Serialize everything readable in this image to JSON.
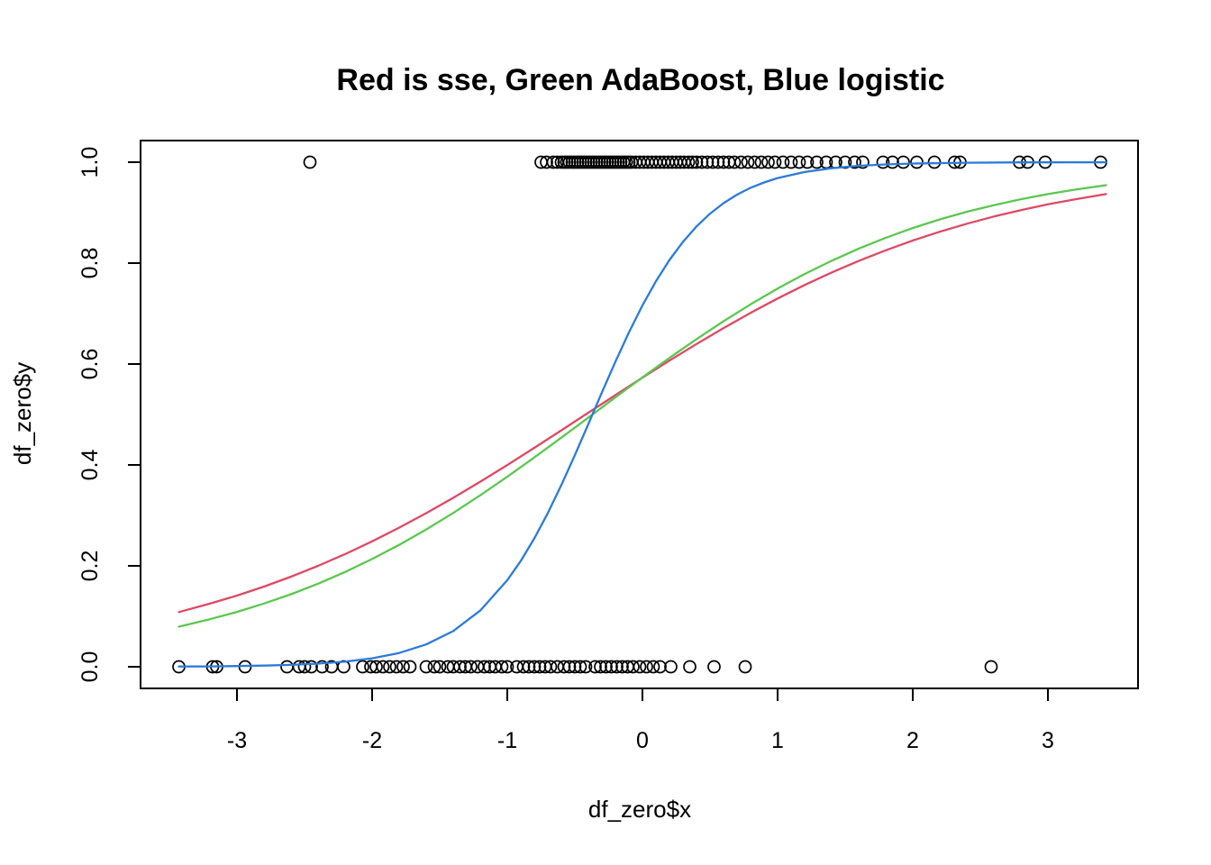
{
  "chart_data": {
    "type": "scatter",
    "title": "Red is sse, Green AdaBoost, Blue logistic",
    "xlabel": "df_zero$x",
    "ylabel": "df_zero$y",
    "xlim": [
      -3.713,
      3.667
    ],
    "ylim": [
      -0.0429,
      1.0429
    ],
    "grid": false,
    "legend": "none (colors named in title)",
    "x_axis": {
      "tick_values": [
        -3,
        -2,
        -1,
        0,
        1,
        2,
        3
      ],
      "tick_labels": [
        "-3",
        "-2",
        "-1",
        "0",
        "1",
        "2",
        "3"
      ]
    },
    "y_axis": {
      "tick_values": [
        0.0,
        0.2,
        0.4,
        0.6,
        0.8,
        1.0
      ],
      "tick_labels": [
        "0.0",
        "0.2",
        "0.4",
        "0.6",
        "0.8",
        "1.0"
      ],
      "label_rotation": -90
    },
    "colors": {
      "background": "#ffffff",
      "foreground": "#000000",
      "sse_red": "#DD4965",
      "adaboost_green": "#5BC74F",
      "logistic_blue": "#2B7BD9"
    },
    "scatter": {
      "marker": "open-circle",
      "color": "#000000",
      "y1_x": [
        -2.46,
        -0.75,
        -0.71,
        -0.66,
        -0.63,
        -0.6,
        -0.58,
        -0.56,
        -0.54,
        -0.52,
        -0.5,
        -0.48,
        -0.46,
        -0.44,
        -0.42,
        -0.4,
        -0.38,
        -0.36,
        -0.34,
        -0.32,
        -0.3,
        -0.28,
        -0.26,
        -0.24,
        -0.22,
        -0.2,
        -0.18,
        -0.16,
        -0.14,
        -0.12,
        -0.1,
        -0.08,
        -0.05,
        -0.02,
        0.01,
        0.04,
        0.07,
        0.1,
        0.13,
        0.16,
        0.19,
        0.22,
        0.25,
        0.28,
        0.31,
        0.34,
        0.37,
        0.4,
        0.44,
        0.48,
        0.52,
        0.56,
        0.6,
        0.64,
        0.68,
        0.73,
        0.78,
        0.83,
        0.88,
        0.93,
        0.98,
        1.04,
        1.1,
        1.16,
        1.22,
        1.29,
        1.36,
        1.43,
        1.5,
        1.57,
        1.63,
        1.78,
        1.85,
        1.93,
        2.03,
        2.16,
        2.31,
        2.35,
        2.79,
        2.85,
        2.98,
        3.39
      ],
      "y0_x": [
        -3.43,
        -3.18,
        -3.15,
        -2.94,
        -2.63,
        -2.54,
        -2.5,
        -2.45,
        -2.37,
        -2.3,
        -2.21,
        -2.07,
        -2.01,
        -1.97,
        -1.92,
        -1.87,
        -1.82,
        -1.77,
        -1.72,
        -1.6,
        -1.54,
        -1.5,
        -1.44,
        -1.4,
        -1.35,
        -1.31,
        -1.27,
        -1.22,
        -1.17,
        -1.13,
        -1.09,
        -1.04,
        -1.0,
        -0.93,
        -0.88,
        -0.84,
        -0.8,
        -0.76,
        -0.72,
        -0.68,
        -0.63,
        -0.58,
        -0.54,
        -0.5,
        -0.46,
        -0.42,
        -0.35,
        -0.31,
        -0.27,
        -0.23,
        -0.19,
        -0.15,
        -0.11,
        -0.07,
        -0.02,
        0.03,
        0.08,
        0.13,
        0.21,
        0.35,
        0.53,
        0.76,
        2.58
      ]
    },
    "series": [
      {
        "name": "sse",
        "color_key": "sse_red",
        "x": [
          -3.43,
          -3.2,
          -3.0,
          -2.8,
          -2.6,
          -2.4,
          -2.2,
          -2.0,
          -1.8,
          -1.6,
          -1.4,
          -1.2,
          -1.0,
          -0.8,
          -0.6,
          -0.4,
          -0.2,
          0,
          0.2,
          0.4,
          0.6,
          0.8,
          1.0,
          1.2,
          1.4,
          1.6,
          1.8,
          2.0,
          2.2,
          2.4,
          2.6,
          2.8,
          3.0,
          3.2,
          3.43
        ],
        "y": [
          0.1084,
          0.1251,
          0.1411,
          0.1589,
          0.1786,
          0.2,
          0.2233,
          0.2486,
          0.2757,
          0.3045,
          0.3349,
          0.3668,
          0.3999,
          0.4339,
          0.4685,
          0.5035,
          0.5384,
          0.573,
          0.6068,
          0.6397,
          0.6713,
          0.7014,
          0.7299,
          0.7566,
          0.7815,
          0.8043,
          0.8254,
          0.8448,
          0.8622,
          0.878,
          0.8923,
          0.905,
          0.9164,
          0.9264,
          0.9367
        ]
      },
      {
        "name": "AdaBoost",
        "color_key": "adaboost_green",
        "x": [
          -3.43,
          -3.2,
          -3.0,
          -2.8,
          -2.6,
          -2.4,
          -2.2,
          -2.0,
          -1.8,
          -1.6,
          -1.4,
          -1.2,
          -1.0,
          -0.8,
          -0.6,
          -0.4,
          -0.2,
          0,
          0.2,
          0.4,
          0.6,
          0.8,
          1.0,
          1.2,
          1.4,
          1.6,
          1.8,
          2.0,
          2.2,
          2.4,
          2.6,
          2.8,
          3.0,
          3.2,
          3.43
        ],
        "y": [
          0.0795,
          0.0942,
          0.1087,
          0.1253,
          0.1438,
          0.1646,
          0.1879,
          0.2135,
          0.2416,
          0.2721,
          0.3049,
          0.3398,
          0.3766,
          0.4148,
          0.4541,
          0.494,
          0.5339,
          0.5735,
          0.6121,
          0.6493,
          0.6848,
          0.7182,
          0.7495,
          0.7784,
          0.8047,
          0.8287,
          0.8501,
          0.8694,
          0.8866,
          0.9017,
          0.9149,
          0.9266,
          0.9367,
          0.9456,
          0.9544
        ]
      },
      {
        "name": "logistic",
        "color_key": "logistic_blue",
        "x": [
          -3.43,
          -3.2,
          -3.0,
          -2.8,
          -2.6,
          -2.4,
          -2.2,
          -2.0,
          -1.8,
          -1.6,
          -1.4,
          -1.2,
          -1.0,
          -0.9,
          -0.8,
          -0.7,
          -0.6,
          -0.5,
          -0.4,
          -0.3,
          -0.2,
          -0.1,
          0,
          0.1,
          0.2,
          0.3,
          0.4,
          0.5,
          0.6,
          0.7,
          0.8,
          0.9,
          1.0,
          1.2,
          1.4,
          1.6,
          1.8,
          2.0,
          2.4,
          2.8,
          3.43
        ],
        "y": [
          0.0005,
          0.0008,
          0.0014,
          0.0023,
          0.0038,
          0.0062,
          0.0102,
          0.0167,
          0.0273,
          0.0442,
          0.0707,
          0.1115,
          0.1716,
          0.2099,
          0.2544,
          0.3047,
          0.3601,
          0.4195,
          0.4813,
          0.5436,
          0.6047,
          0.6626,
          0.7161,
          0.7641,
          0.8062,
          0.8422,
          0.8727,
          0.898,
          0.9188,
          0.9357,
          0.9492,
          0.9599,
          0.9685,
          0.9806,
          0.9881,
          0.9928,
          0.9956,
          0.9973,
          0.999,
          0.9996,
          0.9999
        ]
      }
    ]
  }
}
